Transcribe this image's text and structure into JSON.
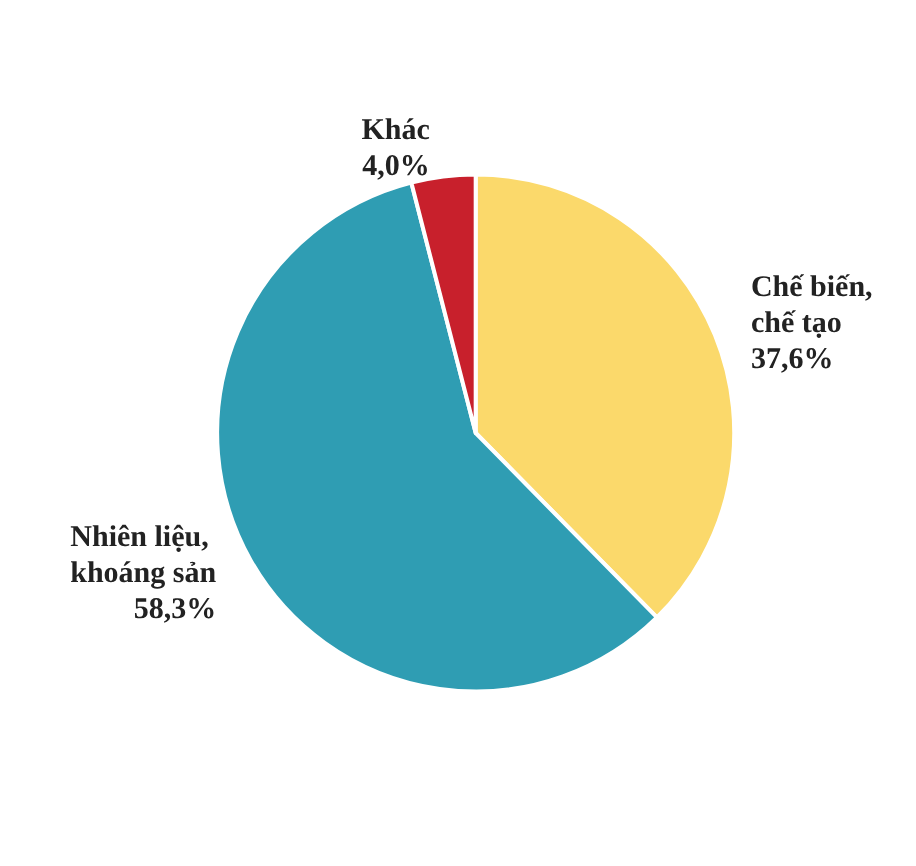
{
  "chart_data": {
    "type": "pie",
    "categories": [
      "Chế biến, chế tạo",
      "Nhiên liệu, khoáng sản",
      "Khác"
    ],
    "values": [
      37.6,
      58.3,
      4.0
    ],
    "colors": [
      "#fbd96b",
      "#2f9db3",
      "#c8202c"
    ],
    "value_labels": [
      "37,6%",
      "58,3%",
      "4,0%"
    ]
  }
}
